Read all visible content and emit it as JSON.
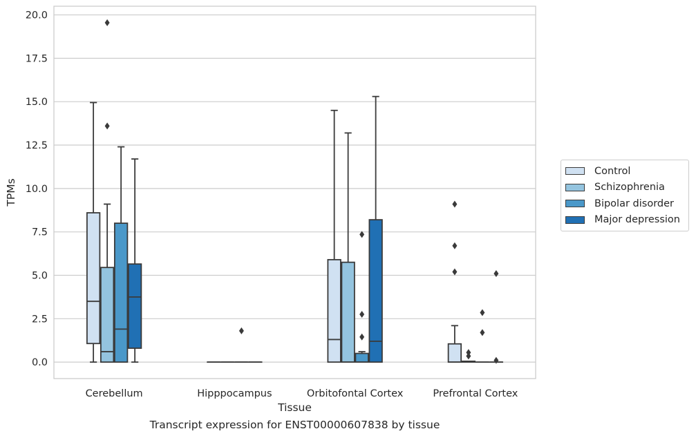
{
  "chart_data": {
    "type": "box",
    "xlabel": "Tissue",
    "ylabel": "TPMs",
    "ylim": [
      -0.95,
      20.5
    ],
    "yticks": [
      0.0,
      2.5,
      5.0,
      7.5,
      10.0,
      12.5,
      15.0,
      17.5,
      20.0
    ],
    "ytick_labels": [
      "0.0",
      "2.5",
      "5.0",
      "7.5",
      "10.0",
      "12.5",
      "15.0",
      "17.5",
      "20.0"
    ],
    "grid": "horizontal",
    "legend_position": "right",
    "categories": [
      "Cerebellum",
      "Hipppocampus",
      "Orbitofontal Cortex",
      "Prefrontal Cortex"
    ],
    "series": [
      {
        "name": "Control",
        "color": "#d0e1f2",
        "boxes": [
          {
            "whisker_low": 0.0,
            "q1": 1.07,
            "median": 3.5,
            "q3": 8.6,
            "whisker_high": 14.95,
            "outliers": []
          },
          {
            "whisker_low": 0.0,
            "q1": 0.0,
            "median": 0.0,
            "q3": 0.0,
            "whisker_high": 0.0,
            "outliers": []
          },
          {
            "whisker_low": 0.0,
            "q1": 0.0,
            "median": 1.3,
            "q3": 5.9,
            "whisker_high": 14.5,
            "outliers": []
          },
          {
            "whisker_low": 0.0,
            "q1": 0.0,
            "median": 0.0,
            "q3": 1.05,
            "whisker_high": 2.1,
            "outliers": [
              5.2,
              6.7,
              9.1
            ]
          }
        ]
      },
      {
        "name": "Schizophrenia",
        "color": "#94c4df",
        "boxes": [
          {
            "whisker_low": 0.0,
            "q1": 0.0,
            "median": 0.6,
            "q3": 5.45,
            "whisker_high": 9.1,
            "outliers": [
              13.6,
              19.55
            ]
          },
          {
            "whisker_low": 0.0,
            "q1": 0.0,
            "median": 0.0,
            "q3": 0.0,
            "whisker_high": 0.0,
            "outliers": []
          },
          {
            "whisker_low": 0.0,
            "q1": 0.0,
            "median": 0.0,
            "q3": 5.75,
            "whisker_high": 13.2,
            "outliers": []
          },
          {
            "whisker_low": 0.0,
            "q1": 0.0,
            "median": 0.0,
            "q3": 0.05,
            "whisker_high": 0.05,
            "outliers": [
              0.35,
              0.55
            ]
          }
        ]
      },
      {
        "name": "Bipolar disorder",
        "color": "#4a98c9",
        "boxes": [
          {
            "whisker_low": 0.0,
            "q1": 0.0,
            "median": 1.9,
            "q3": 8.0,
            "whisker_high": 12.4,
            "outliers": []
          },
          {
            "whisker_low": 0.0,
            "q1": 0.0,
            "median": 0.0,
            "q3": 0.0,
            "whisker_high": 0.0,
            "outliers": [
              1.8
            ]
          },
          {
            "whisker_low": 0.0,
            "q1": 0.0,
            "median": 0.0,
            "q3": 0.5,
            "whisker_high": 0.6,
            "outliers": [
              1.45,
              2.75,
              7.35
            ]
          },
          {
            "whisker_low": 0.0,
            "q1": 0.0,
            "median": 0.0,
            "q3": 0.0,
            "whisker_high": 0.0,
            "outliers": [
              1.7,
              2.85
            ]
          }
        ]
      },
      {
        "name": "Major depression",
        "color": "#2070b4",
        "boxes": [
          {
            "whisker_low": 0.0,
            "q1": 0.8,
            "median": 3.75,
            "q3": 5.65,
            "whisker_high": 11.7,
            "outliers": []
          },
          {
            "whisker_low": 0.0,
            "q1": 0.0,
            "median": 0.0,
            "q3": 0.0,
            "whisker_high": 0.0,
            "outliers": []
          },
          {
            "whisker_low": 0.0,
            "q1": 0.0,
            "median": 1.2,
            "q3": 8.2,
            "whisker_high": 15.3,
            "outliers": []
          },
          {
            "whisker_low": 0.0,
            "q1": 0.0,
            "median": 0.0,
            "q3": 0.0,
            "whisker_high": 0.0,
            "outliers": [
              0.1,
              5.1
            ]
          }
        ]
      }
    ]
  },
  "caption": "Transcript expression for ENST00000607838 by tissue",
  "colors": {
    "grid": "#cccccc",
    "line": "#3a3a3a",
    "text": "#262626"
  }
}
